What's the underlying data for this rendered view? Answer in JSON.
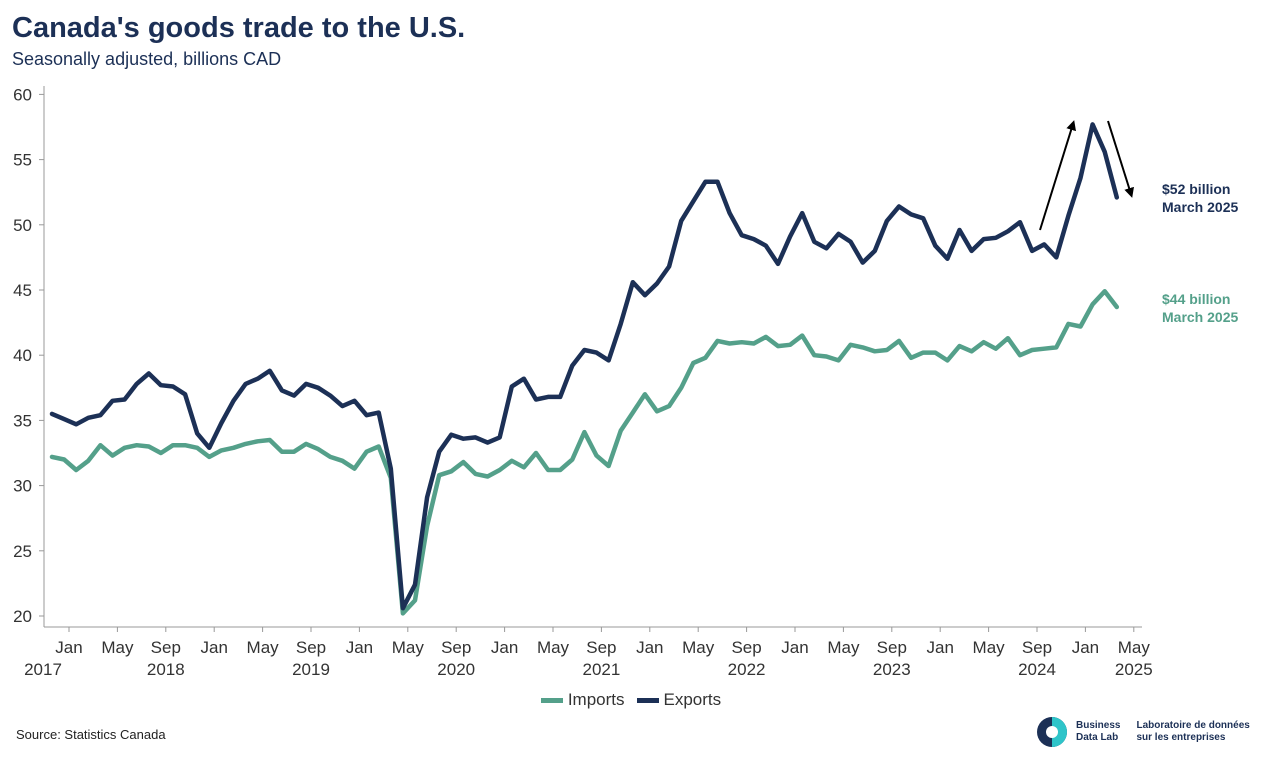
{
  "header": {
    "title": "Canada's goods trade to the U.S.",
    "subtitle": "Seasonally adjusted, billions CAD"
  },
  "legend": {
    "imports_label": "Imports",
    "exports_label": "Exports"
  },
  "annotations": {
    "exports_value": "$52 billion",
    "exports_date": "March 2025",
    "imports_value": "$44 billion",
    "imports_date": "March 2025"
  },
  "footer": {
    "source": "Source: Statistics Canada",
    "logo_en_line1": "Business",
    "logo_en_line2": "Data Lab",
    "logo_fr_line1": "Laboratoire de données",
    "logo_fr_line2": "sur les entreprises"
  },
  "colors": {
    "exports": "#1c3056",
    "imports": "#54a08a",
    "logo_teal": "#2ec4c9",
    "logo_navy": "#1c3056"
  },
  "chart_data": {
    "type": "line",
    "x_start": "2017-09",
    "x_end": "2025-03",
    "ylim": [
      19,
      61
    ],
    "yticks": [
      20,
      25,
      30,
      35,
      40,
      45,
      50,
      55,
      60
    ],
    "xticks": [
      {
        "month": "Jan",
        "year": "2017"
      },
      {
        "month": "May",
        "year": ""
      },
      {
        "month": "Sep",
        "year": "2018"
      },
      {
        "month": "Jan",
        "year": ""
      },
      {
        "month": "May",
        "year": ""
      },
      {
        "month": "Sep",
        "year": "2019"
      },
      {
        "month": "Jan",
        "year": ""
      },
      {
        "month": "May",
        "year": ""
      },
      {
        "month": "Sep",
        "year": "2020"
      },
      {
        "month": "Jan",
        "year": ""
      },
      {
        "month": "May",
        "year": ""
      },
      {
        "month": "Sep",
        "year": "2021"
      },
      {
        "month": "Jan",
        "year": ""
      },
      {
        "month": "May",
        "year": ""
      },
      {
        "month": "Sep",
        "year": "2022"
      },
      {
        "month": "Jan",
        "year": ""
      },
      {
        "month": "May",
        "year": ""
      },
      {
        "month": "Sep",
        "year": "2023"
      },
      {
        "month": "Jan",
        "year": ""
      },
      {
        "month": "May",
        "year": ""
      },
      {
        "month": "Sep",
        "year": "2024"
      },
      {
        "month": "Jan",
        "year": ""
      },
      {
        "month": "May",
        "year": "2025"
      }
    ],
    "grid": false,
    "legend_position": "bottom",
    "series": [
      {
        "name": "Imports",
        "values": [
          32.2,
          32.0,
          31.2,
          31.9,
          33.1,
          32.3,
          32.9,
          33.1,
          33.0,
          32.5,
          33.1,
          33.1,
          32.9,
          32.2,
          32.7,
          32.9,
          33.2,
          33.4,
          33.5,
          32.6,
          32.6,
          33.2,
          32.8,
          32.2,
          31.9,
          31.3,
          32.6,
          33.0,
          30.6,
          20.2,
          21.2,
          26.9,
          30.8,
          31.1,
          31.8,
          30.9,
          30.7,
          31.2,
          31.9,
          31.4,
          32.5,
          31.2,
          31.2,
          32.0,
          34.1,
          32.3,
          31.5,
          34.2,
          35.6,
          37.0,
          35.7,
          36.1,
          37.5,
          39.4,
          39.8,
          41.1,
          40.9,
          41.0,
          40.9,
          41.4,
          40.7,
          40.8,
          41.5,
          40.0,
          39.9,
          39.6,
          40.8,
          40.6,
          40.3,
          40.4,
          41.1,
          39.8,
          40.2,
          40.2,
          39.6,
          40.7,
          40.3,
          41.0,
          40.5,
          41.3,
          40.0,
          40.4,
          40.5,
          40.6,
          42.4,
          42.2,
          43.9,
          44.9,
          43.7
        ]
      },
      {
        "name": "Exports",
        "values": [
          35.5,
          35.1,
          34.7,
          35.2,
          35.4,
          36.5,
          36.6,
          37.8,
          38.6,
          37.7,
          37.6,
          37.0,
          34.0,
          32.9,
          34.8,
          36.5,
          37.8,
          38.2,
          38.8,
          37.3,
          36.9,
          37.8,
          37.5,
          36.9,
          36.1,
          36.5,
          35.4,
          35.6,
          31.3,
          20.6,
          22.4,
          29.1,
          32.6,
          33.9,
          33.6,
          33.7,
          33.3,
          33.7,
          37.6,
          38.2,
          36.6,
          36.8,
          36.8,
          39.2,
          40.4,
          40.2,
          39.6,
          42.4,
          45.6,
          44.6,
          45.5,
          46.8,
          50.3,
          51.8,
          53.3,
          53.3,
          50.9,
          49.2,
          48.9,
          48.4,
          47.0,
          49.1,
          50.9,
          48.7,
          48.2,
          49.3,
          48.7,
          47.1,
          48.0,
          50.3,
          51.4,
          50.8,
          50.5,
          48.4,
          47.4,
          49.6,
          48.0,
          48.9,
          49.0,
          49.5,
          50.2,
          48.0,
          48.5,
          47.5,
          50.7,
          53.6,
          57.7,
          55.6,
          52.1
        ]
      }
    ]
  }
}
